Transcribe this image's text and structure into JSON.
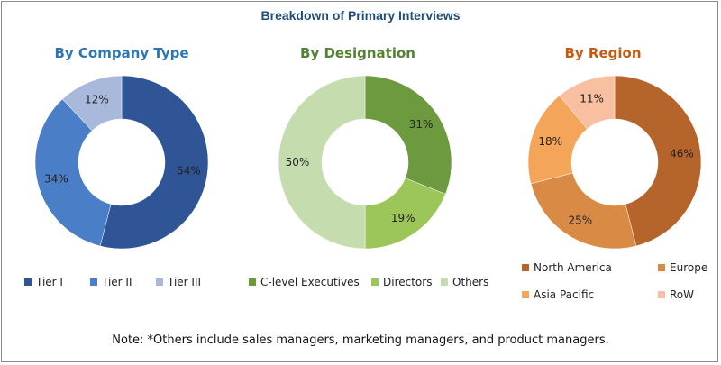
{
  "title": "Breakdown of Primary Interviews",
  "note": "Note: *Others include sales managers, marketing managers, and product managers.",
  "chart_data": [
    {
      "type": "pie",
      "title": "By Company Type",
      "title_color": "#2e75b6",
      "categories": [
        "Tier I",
        "Tier II",
        "Tier III"
      ],
      "values": [
        54,
        34,
        12
      ],
      "labels": [
        "54%",
        "34%",
        "12%"
      ],
      "colors": [
        "#2f5597",
        "#4a7fc7",
        "#a9b9dc"
      ],
      "legend_position": "bottom"
    },
    {
      "type": "pie",
      "title": "By Designation",
      "title_color": "#548235",
      "categories": [
        "C-level Executives",
        "Directors",
        "Others"
      ],
      "values": [
        31,
        19,
        50
      ],
      "labels": [
        "31%",
        "19%",
        "50%"
      ],
      "colors": [
        "#6e9a3f",
        "#9cc55a",
        "#c5dcae"
      ],
      "legend_position": "bottom"
    },
    {
      "type": "pie",
      "title": "By Region",
      "title_color": "#c55a11",
      "categories": [
        "North America",
        "Europe",
        "Asia Pacific",
        "RoW"
      ],
      "values": [
        46,
        25,
        18,
        11
      ],
      "labels": [
        "46%",
        "25%",
        "18%",
        "11%"
      ],
      "colors": [
        "#b5652b",
        "#d98b45",
        "#f4a55a",
        "#f8c0a0"
      ],
      "legend_position": "bottom"
    }
  ]
}
